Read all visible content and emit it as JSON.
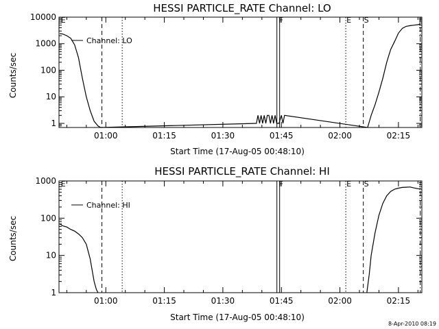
{
  "footer": {
    "timestamp": "8-Apr-2010 08:19"
  },
  "chart_data": [
    {
      "type": "line",
      "title": "HESSI PARTICLE_RATE Channel: LO",
      "xlabel": "Start Time (17-Aug-05 00:48:10)",
      "ylabel": "Counts/sec",
      "yscale": "log",
      "ylim": [
        0.7,
        10000
      ],
      "xlim_minutes": [
        48,
        141
      ],
      "yticks": [
        {
          "v": 1,
          "label": "1"
        },
        {
          "v": 10,
          "label": "10"
        },
        {
          "v": 100,
          "label": "100"
        },
        {
          "v": 1000,
          "label": "1000"
        },
        {
          "v": 10000,
          "label": "10000"
        }
      ],
      "xticks": [
        {
          "m": 60,
          "label": "01:00"
        },
        {
          "m": 75,
          "label": "01:15"
        },
        {
          "m": 90,
          "label": "01:30"
        },
        {
          "m": 105,
          "label": "01:45"
        },
        {
          "m": 120,
          "label": "02:00"
        },
        {
          "m": 135,
          "label": "02:15"
        }
      ],
      "legend": {
        "label": "Channel: LO",
        "placement": "top-left"
      },
      "series": [
        {
          "name": "Channel: LO",
          "x": [
            48.2,
            49,
            50,
            51,
            52,
            53,
            54,
            55,
            56,
            57,
            58,
            58.7,
            98.6,
            99,
            99.4,
            99.8,
            100.2,
            100.6,
            101,
            101.4,
            101.8,
            102.2,
            102.6,
            103,
            103.4,
            103.8,
            104.4,
            105,
            105.4,
            105.8,
            127.1,
            128,
            129,
            130,
            131,
            132,
            133,
            134,
            135,
            136,
            137,
            138,
            139,
            140,
            140.5
          ],
          "y": [
            2400,
            2300,
            2000,
            1600,
            900,
            300,
            50,
            10,
            3,
            1.2,
            0.8,
            0.7,
            1,
            2,
            1,
            2,
            1,
            2,
            1,
            2,
            2,
            1,
            2,
            1,
            2,
            1,
            1,
            2,
            1,
            2,
            0.7,
            2,
            5,
            15,
            50,
            200,
            600,
            1200,
            2500,
            3800,
            4500,
            4800,
            5000,
            5200,
            5500
          ]
        }
      ],
      "markers": [
        {
          "label": "E",
          "m": 48.3,
          "style": "none"
        },
        {
          "label": "",
          "m": 59,
          "style": "dashed"
        },
        {
          "label": "",
          "m": 64.2,
          "style": "dotted"
        },
        {
          "label": "F",
          "m": 104.2,
          "style": "double"
        },
        {
          "label": "E",
          "m": 121.5,
          "style": "dotted"
        },
        {
          "label": "S",
          "m": 126,
          "style": "dashed"
        },
        {
          "label": "",
          "m": 140.6,
          "style": "dashdot"
        }
      ]
    },
    {
      "type": "line",
      "title": "HESSI PARTICLE_RATE Channel: HI",
      "xlabel": "Start Time (17-Aug-05 00:48:10)",
      "ylabel": "Counts/sec",
      "yscale": "log",
      "ylim": [
        1,
        1000
      ],
      "xlim_minutes": [
        48,
        141
      ],
      "yticks": [
        {
          "v": 1,
          "label": "1"
        },
        {
          "v": 10,
          "label": "10"
        },
        {
          "v": 100,
          "label": "100"
        },
        {
          "v": 1000,
          "label": "1000"
        }
      ],
      "xticks": [
        {
          "m": 60,
          "label": "01:00"
        },
        {
          "m": 75,
          "label": "01:15"
        },
        {
          "m": 90,
          "label": "01:30"
        },
        {
          "m": 105,
          "label": "01:45"
        },
        {
          "m": 120,
          "label": "02:00"
        },
        {
          "m": 135,
          "label": "02:15"
        }
      ],
      "legend": {
        "label": "Channel: HI",
        "placement": "top-left"
      },
      "series": [
        {
          "name": "Channel: HI",
          "x": [
            48.2,
            49,
            50,
            51,
            52,
            53,
            54,
            55,
            56,
            57,
            57.6,
            58
          ],
          "y": [
            70,
            62,
            58,
            50,
            45,
            38,
            30,
            20,
            8,
            2,
            1.2,
            1
          ]
        },
        {
          "name": "Channel: HI",
          "x": [
            126.9,
            127.5,
            128,
            129,
            130,
            131,
            132,
            133,
            134,
            135,
            136,
            137,
            138,
            139,
            140,
            140.5
          ],
          "y": [
            1,
            3,
            10,
            40,
            120,
            250,
            400,
            520,
            600,
            640,
            670,
            680,
            690,
            650,
            620,
            610
          ]
        }
      ],
      "markers": [
        {
          "label": "E",
          "m": 48.3,
          "style": "none"
        },
        {
          "label": "",
          "m": 59,
          "style": "dashed"
        },
        {
          "label": "",
          "m": 64.2,
          "style": "dotted"
        },
        {
          "label": "F",
          "m": 104.2,
          "style": "double"
        },
        {
          "label": "E",
          "m": 121.5,
          "style": "dotted"
        },
        {
          "label": "S",
          "m": 126,
          "style": "dashed"
        },
        {
          "label": "",
          "m": 140.6,
          "style": "dashdot"
        }
      ]
    }
  ]
}
